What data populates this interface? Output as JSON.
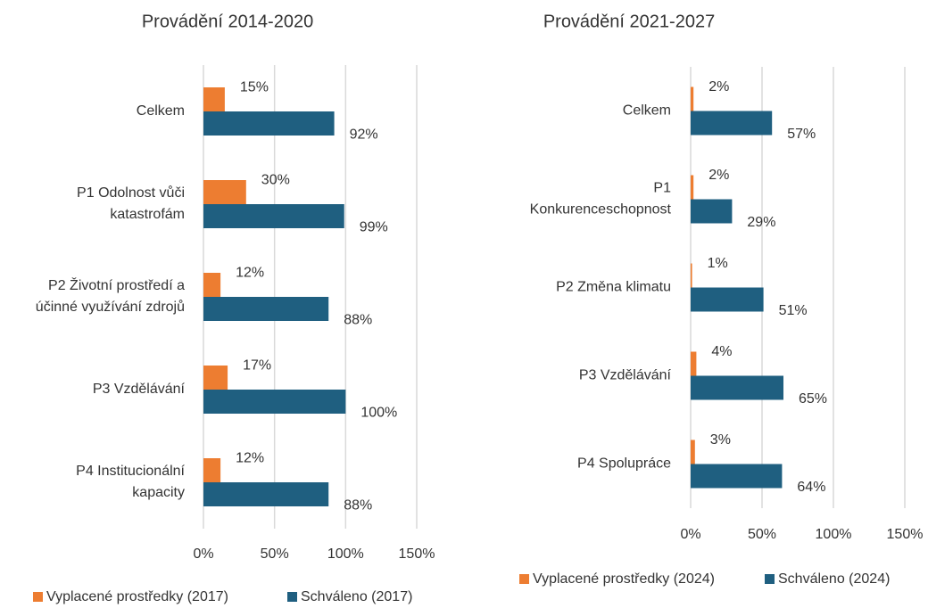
{
  "chart_data": [
    {
      "type": "barh",
      "title": "Provádění 2014-2020",
      "categories": [
        "Celkem",
        "P1 Odolnost vůči\nkatastrofám",
        "P2 Životní prostředí a\núčinné využívání zdrojů",
        "P3 Vzdělávání",
        "P4 Institucionální\nkapacity"
      ],
      "series": [
        {
          "name": "Vyplacené prostředky (2017)",
          "color": "#ed7d31",
          "values": [
            15,
            30,
            12,
            17,
            12
          ],
          "value_labels": [
            "15%",
            "30%",
            "12%",
            "17%",
            "12%"
          ]
        },
        {
          "name": "Schváleno (2017)",
          "color": "#1f5f80",
          "values": [
            92,
            99,
            88,
            100,
            88
          ],
          "value_labels": [
            "92%",
            "99%",
            "88%",
            "100%",
            "88%"
          ]
        }
      ],
      "xlim": [
        0,
        150
      ],
      "xticks": [
        {
          "value": 0,
          "label": "0%"
        },
        {
          "value": 50,
          "label": "50%"
        },
        {
          "value": 100,
          "label": "100%"
        },
        {
          "value": 150,
          "label": "150%"
        }
      ],
      "grid": true,
      "legend": "bottom"
    },
    {
      "type": "barh",
      "title": "Provádění 2021-2027",
      "categories": [
        "Celkem",
        "P1\nKonkurenceschopnost",
        "P2 Změna klimatu",
        "P3 Vzdělávání",
        "P4 Spolupráce"
      ],
      "series": [
        {
          "name": "Vyplacené prostředky (2024)",
          "color": "#ed7d31",
          "values": [
            2,
            2,
            1,
            4,
            3
          ],
          "value_labels": [
            "2%",
            "2%",
            "1%",
            "4%",
            "3%"
          ]
        },
        {
          "name": "Schváleno (2024)",
          "color": "#1f5f80",
          "values": [
            57,
            29,
            51,
            65,
            64
          ],
          "value_labels": [
            "57%",
            "29%",
            "51%",
            "65%",
            "64%"
          ]
        }
      ],
      "xlim": [
        0,
        150
      ],
      "xticks": [
        {
          "value": 0,
          "label": "0%"
        },
        {
          "value": 50,
          "label": "50%"
        },
        {
          "value": 100,
          "label": "100%"
        },
        {
          "value": 150,
          "label": "150%"
        }
      ],
      "grid": true,
      "legend": "bottom"
    }
  ]
}
